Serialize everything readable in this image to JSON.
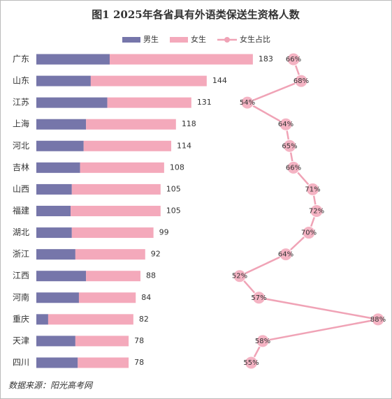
{
  "chart_data": {
    "type": "bar",
    "orientation": "horizontal",
    "stacked": true,
    "title": "图1  2025年各省具有外语类保送生资格人数",
    "categories": [
      "广东",
      "山东",
      "江苏",
      "上海",
      "河北",
      "吉林",
      "山西",
      "福建",
      "湖北",
      "浙江",
      "江西",
      "河南",
      "重庆",
      "天津",
      "四川"
    ],
    "series": [
      {
        "name": "男生",
        "color": "#7676aa",
        "values": [
          62,
          46,
          60,
          42,
          40,
          37,
          30,
          29,
          30,
          33,
          42,
          36,
          10,
          33,
          35
        ]
      },
      {
        "name": "女生",
        "color": "#f4a9bb",
        "values": [
          121,
          98,
          71,
          76,
          74,
          71,
          75,
          76,
          69,
          59,
          46,
          48,
          72,
          45,
          43
        ]
      },
      {
        "name": "女生占比",
        "type": "line",
        "axis": "x2",
        "color": "#f0a3b6",
        "values": [
          66,
          68,
          54,
          64,
          65,
          66,
          71,
          72,
          70,
          64,
          52,
          57,
          88,
          58,
          55
        ],
        "value_labels": [
          "66%",
          "68%",
          "54%",
          "64%",
          "65%",
          "66%",
          "71%",
          "72%",
          "70%",
          "64%",
          "52%",
          "57%",
          "88%",
          "58%",
          "55%"
        ]
      }
    ],
    "totals": [
      183,
      144,
      131,
      118,
      114,
      108,
      105,
      105,
      99,
      92,
      88,
      84,
      82,
      78,
      78
    ],
    "xlim": [
      0,
      300
    ],
    "x2lim": [
      0,
      100
    ],
    "legend": "top",
    "grid": false,
    "source": "数据来源：阳光高考网"
  }
}
